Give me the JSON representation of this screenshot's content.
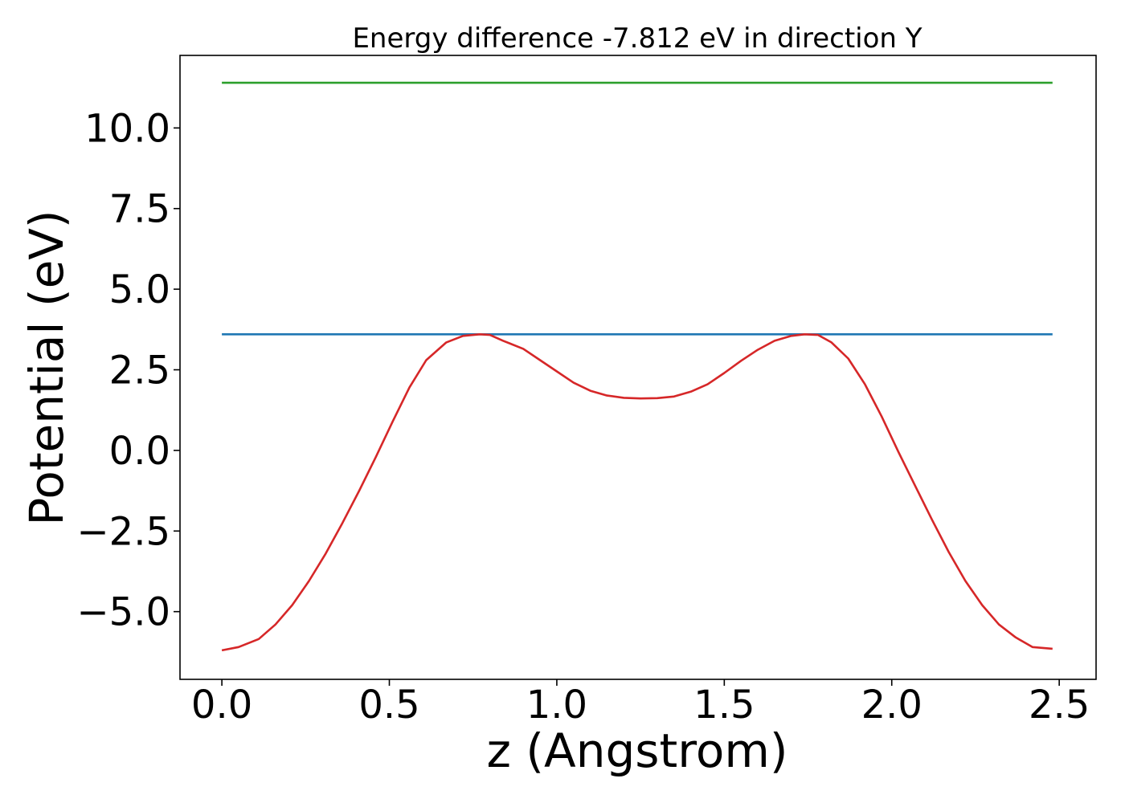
{
  "chart_data": {
    "type": "line",
    "title": "Energy difference -7.812 eV in direction Y",
    "xlabel": "z (Angstrom)",
    "ylabel": "Potential (eV)",
    "xlim": [
      -0.125,
      2.61
    ],
    "ylim": [
      -7.1,
      12.25
    ],
    "xticks": [
      0.0,
      0.5,
      1.0,
      1.5,
      2.0,
      2.5
    ],
    "xtick_labels": [
      "0.0",
      "0.5",
      "1.0",
      "1.5",
      "2.0",
      "2.5"
    ],
    "yticks": [
      -5.0,
      -2.5,
      0.0,
      2.5,
      5.0,
      7.5,
      10.0
    ],
    "ytick_labels": [
      "−5.0",
      "−2.5",
      "0.0",
      "2.5",
      "5.0",
      "7.5",
      "10.0"
    ],
    "grid": false,
    "series": [
      {
        "color": "#2ca02c",
        "x": [
          0.0,
          2.48
        ],
        "y": [
          11.4,
          11.4
        ]
      },
      {
        "color": "#1f77b4",
        "x": [
          0.0,
          2.48
        ],
        "y": [
          3.6,
          3.6
        ]
      },
      {
        "color": "#d62728",
        "x": [
          0.0,
          0.05,
          0.11,
          0.16,
          0.21,
          0.26,
          0.31,
          0.36,
          0.41,
          0.46,
          0.51,
          0.56,
          0.61,
          0.67,
          0.72,
          0.77,
          0.8,
          0.84,
          0.9,
          0.95,
          1.0,
          1.05,
          1.1,
          1.15,
          1.2,
          1.25,
          1.3,
          1.35,
          1.4,
          1.45,
          1.5,
          1.55,
          1.6,
          1.65,
          1.7,
          1.74,
          1.78,
          1.82,
          1.87,
          1.92,
          1.97,
          2.02,
          2.07,
          2.12,
          2.17,
          2.22,
          2.27,
          2.32,
          2.37,
          2.42,
          2.48
        ],
        "y": [
          -6.2,
          -6.1,
          -5.85,
          -5.4,
          -4.8,
          -4.05,
          -3.2,
          -2.25,
          -1.25,
          -0.2,
          0.9,
          1.95,
          2.8,
          3.35,
          3.55,
          3.6,
          3.58,
          3.4,
          3.15,
          2.8,
          2.45,
          2.1,
          1.85,
          1.7,
          1.63,
          1.61,
          1.62,
          1.67,
          1.82,
          2.05,
          2.4,
          2.78,
          3.12,
          3.4,
          3.55,
          3.6,
          3.58,
          3.35,
          2.85,
          2.05,
          1.05,
          -0.05,
          -1.1,
          -2.15,
          -3.15,
          -4.05,
          -4.8,
          -5.4,
          -5.8,
          -6.1,
          -6.15
        ]
      }
    ]
  }
}
